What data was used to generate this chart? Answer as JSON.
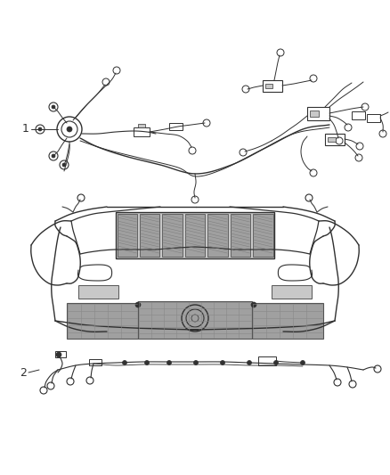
{
  "bg_color": "#ffffff",
  "fig_width": 4.38,
  "fig_height": 5.33,
  "dpi": 100,
  "line_color": "#303030",
  "line_color2": "#555555",
  "label1": "1",
  "label2": "2",
  "gray_light": "#c8c8c8",
  "gray_mid": "#a0a0a0",
  "gray_dark": "#707070"
}
